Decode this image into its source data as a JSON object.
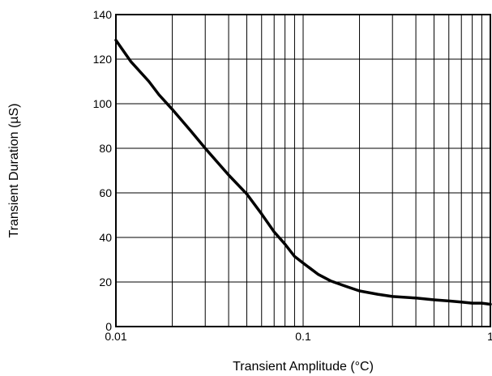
{
  "chart_data": {
    "type": "line",
    "title": "",
    "xlabel": "Transient Amplitude (°C)",
    "ylabel": "Transient Duration (µS)",
    "x_scale": "log",
    "xlim": [
      0.01,
      1
    ],
    "ylim": [
      0,
      140
    ],
    "grid": true,
    "x_ticks": [
      0.01,
      0.1,
      1
    ],
    "x_tick_labels": [
      "0.01",
      "0.1",
      "1"
    ],
    "y_ticks": [
      0,
      20,
      40,
      60,
      80,
      100,
      120,
      140
    ],
    "y_tick_labels": [
      "0",
      "20",
      "40",
      "60",
      "80",
      "100",
      "120",
      "140"
    ],
    "series": [
      {
        "color": "#000000",
        "x": [
          0.01,
          0.012,
          0.015,
          0.017,
          0.02,
          0.025,
          0.03,
          0.04,
          0.05,
          0.06,
          0.07,
          0.08,
          0.09,
          0.1,
          0.12,
          0.14,
          0.17,
          0.2,
          0.25,
          0.3,
          0.4,
          0.5,
          0.6,
          0.7,
          0.8,
          0.9,
          1.0
        ],
        "y": [
          128.5,
          119,
          110,
          104,
          97.5,
          88,
          80,
          68,
          59.5,
          50.5,
          42.5,
          37,
          31.5,
          28.5,
          23.5,
          20.5,
          18,
          16,
          14.5,
          13.5,
          12.8,
          12,
          11.5,
          11,
          10.5,
          10.5,
          10
        ]
      }
    ]
  }
}
